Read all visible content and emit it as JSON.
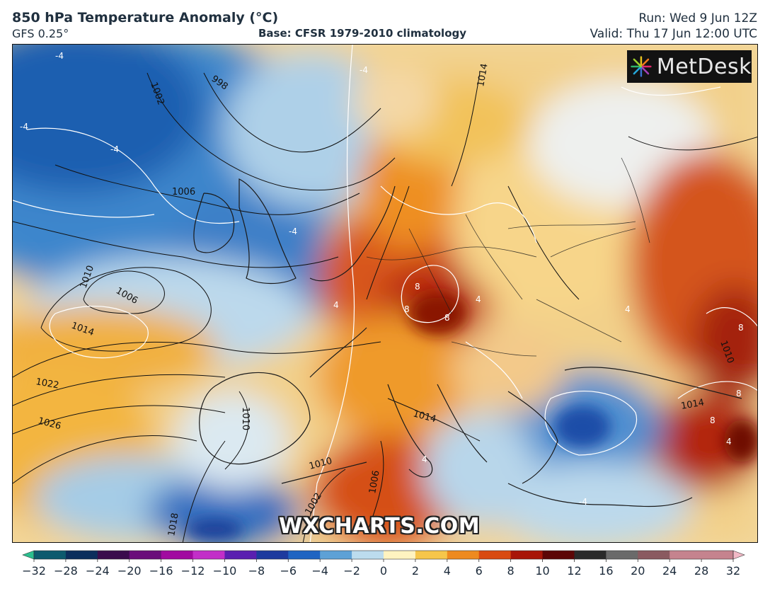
{
  "header": {
    "title": "850 hPa Temperature Anomaly (°C)",
    "model": "GFS 0.25°",
    "base": "Base: CFSR 1979-2010 climatology",
    "run": "Run: Wed 9 Jun 12Z",
    "valid": "Valid: Thu 17 Jun 12:00 UTC"
  },
  "logo": {
    "text": "MetDesk"
  },
  "watermark": "WXCHARTS.COM",
  "isobar_labels": [
    "998",
    "1002",
    "1006",
    "1010",
    "1006",
    "1014",
    "1014",
    "1022",
    "1026",
    "1018",
    "1010",
    "1014",
    "1010",
    "1002",
    "1006",
    "1014",
    "1010"
  ],
  "anomaly_labels": [
    "-4",
    "-4",
    "-4",
    "-4",
    "-4",
    "8",
    "8",
    "8",
    "4",
    "4",
    "4",
    "8",
    "8",
    "8",
    "4",
    "-4",
    "4"
  ],
  "colorbar": {
    "ticks": [
      "−32",
      "−28",
      "−24",
      "−20",
      "−16",
      "−12",
      "−10",
      "−8",
      "−6",
      "−4",
      "−2",
      "0",
      "2",
      "4",
      "6",
      "8",
      "10",
      "12",
      "16",
      "20",
      "24",
      "28",
      "32"
    ],
    "colors": [
      "#2bbf8f",
      "#0c5a6e",
      "#0b2e5c",
      "#3a0c4c",
      "#6a0e7a",
      "#a10aa0",
      "#c22ec8",
      "#5a1fb0",
      "#1d3a9e",
      "#1f64c2",
      "#5da1d6",
      "#bcdcee",
      "#fff3c0",
      "#f6c64a",
      "#ee8a1f",
      "#d94a10",
      "#a81608",
      "#5c0606",
      "#2a2a2a",
      "#6a6a6a",
      "#8a5a60",
      "#c5838e",
      "#f2b9c6"
    ]
  }
}
